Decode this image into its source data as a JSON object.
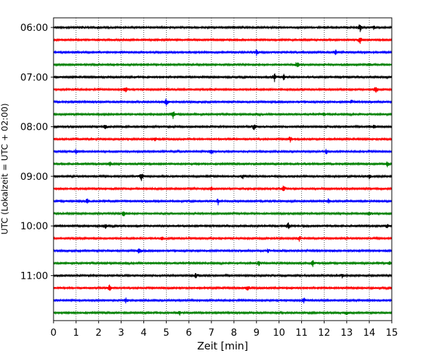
{
  "chart_data": {
    "type": "line",
    "title": "",
    "xlabel": "Zeit  [min]",
    "ylabel": "UTC (Lokalzeit = UTC + 02:00)",
    "xlim": [
      0,
      15
    ],
    "x_ticks": [
      "0",
      "1",
      "2",
      "3",
      "4",
      "5",
      "6",
      "7",
      "8",
      "9",
      "10",
      "11",
      "12",
      "13",
      "14",
      "15"
    ],
    "y_ticks": [
      "06:00",
      "07:00",
      "08:00",
      "09:00",
      "10:00",
      "11:00"
    ],
    "grid": "vertical dotted",
    "legend": "none",
    "colors": [
      "#000000",
      "#ff0000",
      "#0000ff",
      "#008000"
    ],
    "rows": [
      {
        "time": "06:00",
        "color": "#000000",
        "events": [
          {
            "x": 1.3,
            "amp": 2
          },
          {
            "x": 13.6,
            "amp": 7
          },
          {
            "x": 14.2,
            "amp": 3
          }
        ]
      },
      {
        "time": "06:15",
        "color": "#ff0000",
        "events": [
          {
            "x": 13.6,
            "amp": 6
          }
        ]
      },
      {
        "time": "06:30",
        "color": "#0000ff",
        "events": [
          {
            "x": 9.0,
            "amp": 5
          },
          {
            "x": 12.5,
            "amp": 4
          }
        ]
      },
      {
        "time": "06:45",
        "color": "#008000",
        "events": [
          {
            "x": 10.8,
            "amp": 5
          },
          {
            "x": 14.0,
            "amp": 2
          }
        ]
      },
      {
        "time": "07:00",
        "color": "#000000",
        "events": [
          {
            "x": 9.8,
            "amp": 7
          },
          {
            "x": 10.2,
            "amp": 5
          }
        ]
      },
      {
        "time": "07:15",
        "color": "#ff0000",
        "events": [
          {
            "x": 3.2,
            "amp": 5
          },
          {
            "x": 14.3,
            "amp": 6
          }
        ]
      },
      {
        "time": "07:30",
        "color": "#0000ff",
        "events": [
          {
            "x": 5.0,
            "amp": 6
          },
          {
            "x": 13.2,
            "amp": 3
          }
        ]
      },
      {
        "time": "07:45",
        "color": "#008000",
        "events": [
          {
            "x": 5.3,
            "amp": 8
          },
          {
            "x": 12.0,
            "amp": 3
          }
        ]
      },
      {
        "time": "08:00",
        "color": "#000000",
        "events": [
          {
            "x": 2.3,
            "amp": 5
          },
          {
            "x": 8.9,
            "amp": 5
          },
          {
            "x": 14.2,
            "amp": 4
          }
        ]
      },
      {
        "time": "08:15",
        "color": "#ff0000",
        "events": [
          {
            "x": 4.5,
            "amp": 4
          },
          {
            "x": 10.5,
            "amp": 5
          }
        ]
      },
      {
        "time": "08:30",
        "color": "#0000ff",
        "events": [
          {
            "x": 1.0,
            "amp": 4
          },
          {
            "x": 7.0,
            "amp": 5
          },
          {
            "x": 12.1,
            "amp": 4
          }
        ]
      },
      {
        "time": "08:45",
        "color": "#008000",
        "events": [
          {
            "x": 2.5,
            "amp": 3
          },
          {
            "x": 14.8,
            "amp": 4
          }
        ]
      },
      {
        "time": "09:00",
        "color": "#000000",
        "events": [
          {
            "x": 3.9,
            "amp": 7
          },
          {
            "x": 8.4,
            "amp": 4
          },
          {
            "x": 14.0,
            "amp": 4
          }
        ]
      },
      {
        "time": "09:15",
        "color": "#ff0000",
        "events": [
          {
            "x": 7.0,
            "amp": 4
          },
          {
            "x": 10.2,
            "amp": 5
          }
        ]
      },
      {
        "time": "09:30",
        "color": "#0000ff",
        "events": [
          {
            "x": 1.5,
            "amp": 4
          },
          {
            "x": 7.3,
            "amp": 5
          },
          {
            "x": 12.2,
            "amp": 4
          }
        ]
      },
      {
        "time": "09:45",
        "color": "#008000",
        "events": [
          {
            "x": 3.1,
            "amp": 5
          },
          {
            "x": 14.0,
            "amp": 3
          }
        ]
      },
      {
        "time": "10:00",
        "color": "#000000",
        "events": [
          {
            "x": 2.3,
            "amp": 4
          },
          {
            "x": 10.4,
            "amp": 6
          },
          {
            "x": 14.8,
            "amp": 3
          }
        ]
      },
      {
        "time": "10:15",
        "color": "#ff0000",
        "events": [
          {
            "x": 4.8,
            "amp": 3
          },
          {
            "x": 10.9,
            "amp": 4
          }
        ]
      },
      {
        "time": "10:30",
        "color": "#0000ff",
        "events": [
          {
            "x": 3.8,
            "amp": 6
          },
          {
            "x": 9.5,
            "amp": 4
          }
        ]
      },
      {
        "time": "10:45",
        "color": "#008000",
        "events": [
          {
            "x": 9.1,
            "amp": 4
          },
          {
            "x": 11.5,
            "amp": 6
          },
          {
            "x": 14.9,
            "amp": 3
          }
        ]
      },
      {
        "time": "11:00",
        "color": "#000000",
        "events": [
          {
            "x": 6.3,
            "amp": 4
          },
          {
            "x": 12.8,
            "amp": 3
          }
        ]
      },
      {
        "time": "11:15",
        "color": "#ff0000",
        "events": [
          {
            "x": 2.5,
            "amp": 6
          },
          {
            "x": 8.6,
            "amp": 4
          }
        ]
      },
      {
        "time": "11:30",
        "color": "#0000ff",
        "events": [
          {
            "x": 3.2,
            "amp": 4
          },
          {
            "x": 11.1,
            "amp": 5
          }
        ]
      },
      {
        "time": "11:45",
        "color": "#008000",
        "events": [
          {
            "x": 5.6,
            "amp": 3
          },
          {
            "x": 13.0,
            "amp": 3
          }
        ]
      }
    ]
  }
}
